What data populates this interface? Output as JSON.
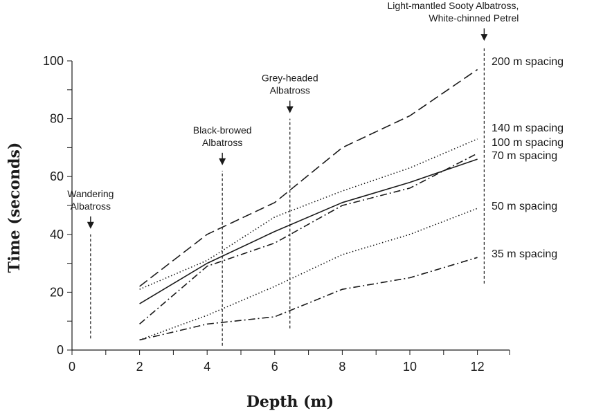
{
  "chart_data": {
    "type": "line",
    "title": "",
    "xlabel": "Depth (m)",
    "ylabel": "Time (seconds)",
    "xlim": [
      0,
      12.6
    ],
    "ylim": [
      0,
      100
    ],
    "xticks": [
      0,
      2,
      4,
      6,
      8,
      10,
      12
    ],
    "yticks": [
      0,
      20,
      40,
      60,
      80,
      100
    ],
    "grid": false,
    "series": [
      {
        "name": "200 m spacing",
        "style": "long-dash",
        "x": [
          2,
          4,
          6,
          8,
          10,
          12
        ],
        "y": [
          22,
          40,
          51,
          70,
          81,
          97
        ]
      },
      {
        "name": "140 m spacing",
        "style": "dotted",
        "x": [
          2,
          4,
          6,
          8,
          10,
          12
        ],
        "y": [
          21,
          31,
          46,
          55,
          63,
          73
        ]
      },
      {
        "name": "100 m spacing",
        "style": "dash-dot",
        "x": [
          2,
          4,
          6,
          8,
          10,
          12
        ],
        "y": [
          9,
          29,
          37,
          50,
          56,
          68
        ]
      },
      {
        "name": "70 m spacing",
        "style": "solid",
        "x": [
          2,
          4,
          6,
          8,
          10,
          12
        ],
        "y": [
          16,
          30,
          41,
          51,
          58,
          66
        ]
      },
      {
        "name": "50 m spacing",
        "style": "dotted",
        "x": [
          2,
          4,
          6,
          8,
          10,
          12
        ],
        "y": [
          3.5,
          12,
          22,
          33,
          40,
          49
        ]
      },
      {
        "name": "35 m spacing",
        "style": "dash-dot",
        "x": [
          2,
          4,
          6,
          8,
          10,
          12
        ],
        "y": [
          3.5,
          9,
          11.5,
          21,
          25,
          32
        ]
      }
    ],
    "annotations": [
      {
        "label": [
          "Wandering",
          "Albatross"
        ],
        "x": 0.55,
        "y_range": [
          4,
          40
        ]
      },
      {
        "label": [
          "Black-browed",
          "Albatross"
        ],
        "x": 4.45,
        "y_range": [
          1.5,
          62
        ]
      },
      {
        "label": [
          "Grey-headed",
          "Albatross"
        ],
        "x": 6.45,
        "y_range": [
          7.5,
          80
        ]
      },
      {
        "label": [
          "Light-mantled Sooty Albatross,",
          "White-chinned Petrel"
        ],
        "x": 12.2,
        "y_range": [
          23,
          105
        ]
      }
    ]
  }
}
